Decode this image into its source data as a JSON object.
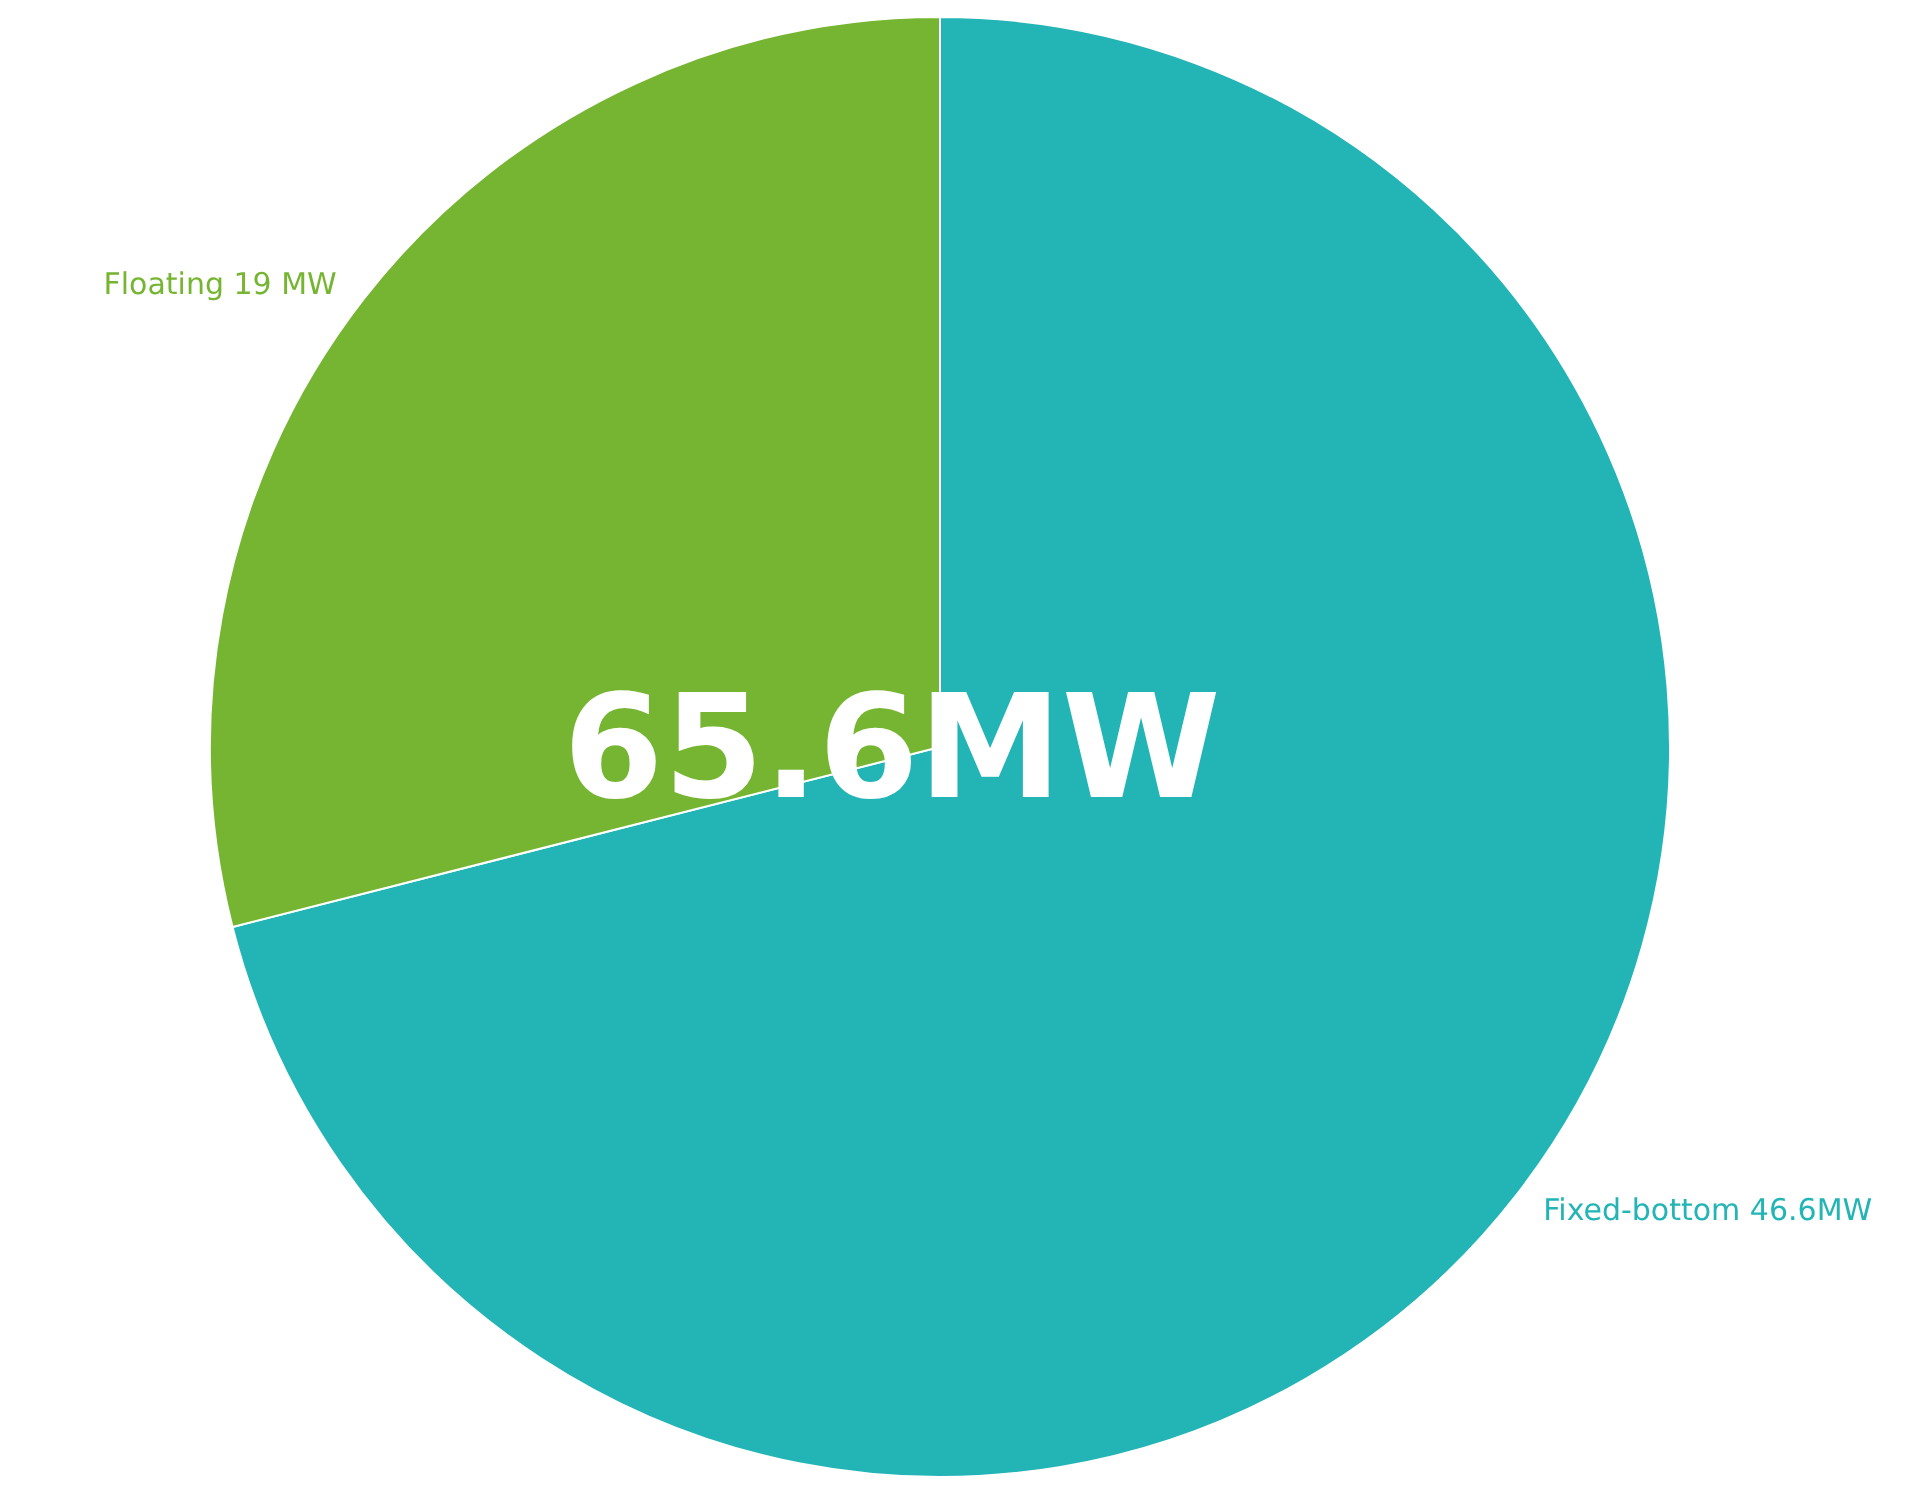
{
  "chart_data": {
    "type": "pie",
    "categories": [
      "Fixed-bottom",
      "Floating"
    ],
    "values": [
      46.6,
      19
    ],
    "value_labels": [
      "46.6MW",
      "19 MW"
    ],
    "colors": [
      "#23b4b6",
      "#76b531"
    ],
    "annotations": [
      "65.6MW"
    ]
  }
}
